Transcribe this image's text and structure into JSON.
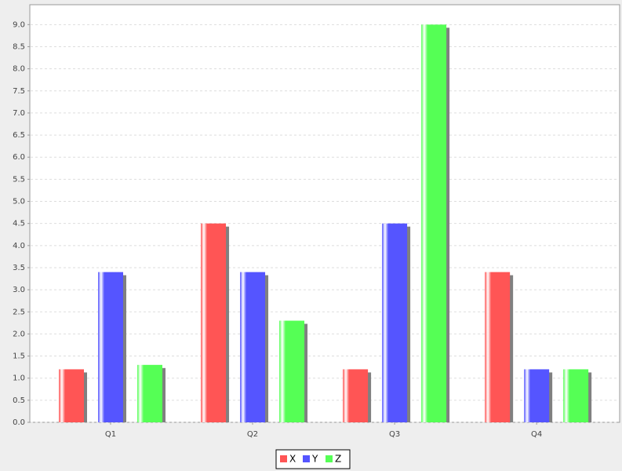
{
  "chart_data": {
    "type": "bar",
    "categories": [
      "Q1",
      "Q2",
      "Q3",
      "Q4"
    ],
    "series": [
      {
        "name": "X",
        "color": "#ff5555",
        "values": [
          1.2,
          4.5,
          1.2,
          3.4
        ]
      },
      {
        "name": "Y",
        "color": "#5555ff",
        "values": [
          3.4,
          3.4,
          4.5,
          1.2
        ]
      },
      {
        "name": "Z",
        "color": "#55ff55",
        "values": [
          1.3,
          2.3,
          9.0,
          1.2
        ]
      }
    ],
    "ylim": [
      0,
      9.45
    ],
    "yticks": [
      {
        "value": 0,
        "label": "0.0"
      },
      0.5,
      {
        "value": 1,
        "label": "1.0"
      },
      1.5,
      {
        "value": 2,
        "label": "2.0"
      },
      2.5,
      {
        "value": 3,
        "label": "3.0"
      },
      3.5,
      {
        "value": 4,
        "label": "4.0"
      },
      4.5,
      {
        "value": 5,
        "label": "5.0"
      },
      5.5,
      {
        "value": 6,
        "label": "6.0"
      },
      6.5,
      {
        "value": 7,
        "label": "7.0"
      },
      7.5,
      {
        "value": 8,
        "label": "8.0"
      },
      8.5,
      {
        "value": 9,
        "label": "9.0"
      }
    ],
    "grid": true
  }
}
